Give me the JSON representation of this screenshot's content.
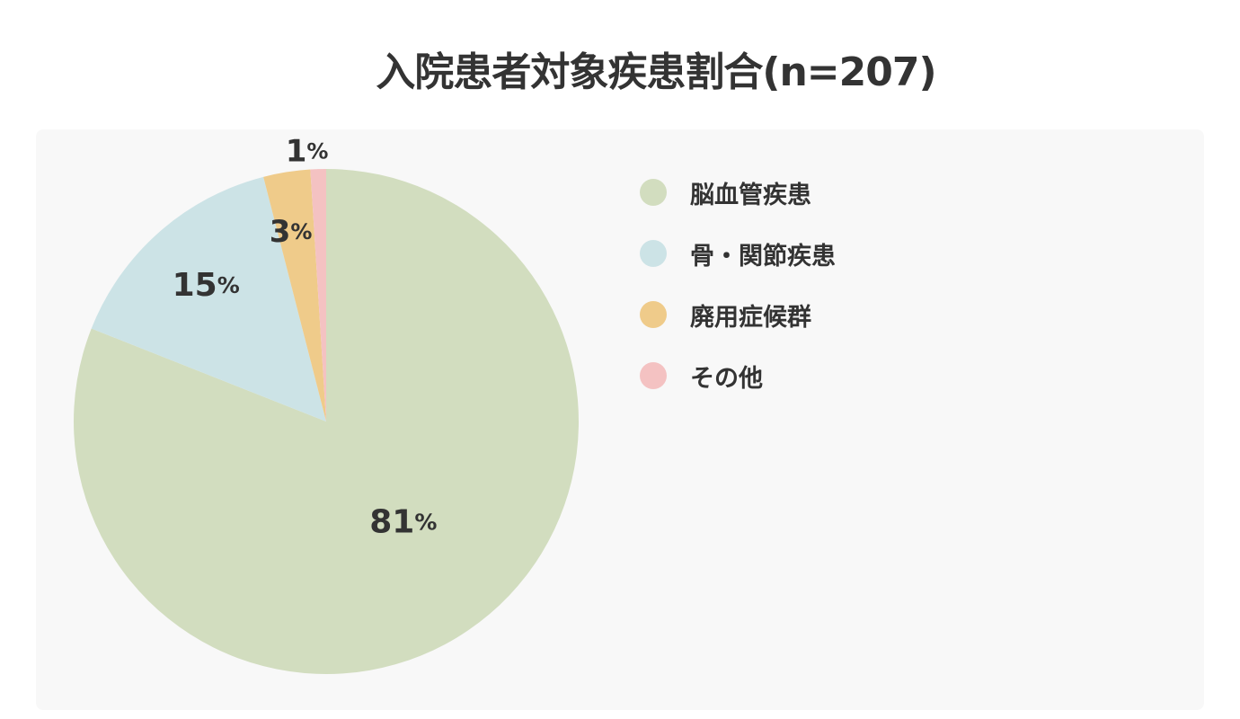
{
  "chart_data": {
    "type": "pie",
    "title": "入院患者対象疾患割合(n=207)",
    "categories": [
      "脳血管疾患",
      "骨・関節疾患",
      "廃用症候群",
      "その他"
    ],
    "values": [
      81,
      15,
      3,
      1
    ],
    "unit": "%",
    "colors": [
      "#d2ddbf",
      "#cce3e6",
      "#efcb8a",
      "#f4c2c2"
    ],
    "legend_position": "right",
    "start_angle": "12 o'clock, clockwise"
  },
  "slice_labels": [
    "81",
    "15",
    "3",
    "1"
  ]
}
